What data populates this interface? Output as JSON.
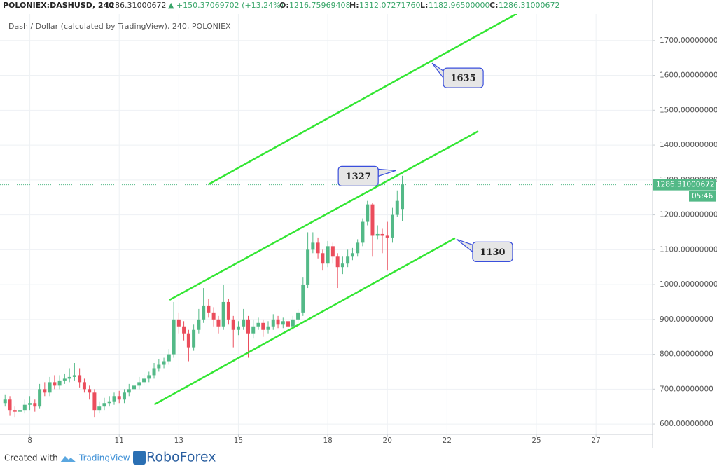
{
  "header": {
    "symbol": "POLONIEX:DASHUSD, 240",
    "last": "1286.31000672",
    "change": "▲ +150.37069702 (+13.24%)",
    "open_label": "O:",
    "open": "1216.75969408",
    "high_label": "H:",
    "high": "1312.07271760",
    "low_label": "L:",
    "low": "1182.96500000",
    "close_label": "C:",
    "close": "1286.31000672"
  },
  "footer": {
    "created": "Created with",
    "tradingview": "TradingView",
    "broker": "RoboForex"
  },
  "chart_data": {
    "type": "candlestick",
    "subtitle": "Dash / Dollar (calculated by TradingView), 240, POLONIEX",
    "x": [
      7.17,
      7.33,
      7.5,
      7.67,
      7.83,
      8,
      8.17,
      8.33,
      8.5,
      8.67,
      8.83,
      9,
      9.17,
      9.33,
      9.5,
      9.67,
      9.83,
      10,
      10.17,
      10.33,
      10.5,
      10.67,
      10.83,
      11,
      11.17,
      11.33,
      11.5,
      11.67,
      11.83,
      12,
      12.17,
      12.33,
      12.5,
      12.67,
      12.83,
      13,
      13.17,
      13.33,
      13.5,
      13.67,
      13.83,
      14,
      14.17,
      14.33,
      14.5,
      14.67,
      14.83,
      15,
      15.17,
      15.33,
      15.5,
      15.67,
      15.83,
      16,
      16.17,
      16.33,
      16.5,
      16.67,
      16.83,
      17,
      17.17,
      17.33,
      17.5,
      17.67,
      17.83,
      18,
      18.17,
      18.33,
      18.5,
      18.67,
      18.83,
      19,
      19.17,
      19.33,
      19.5,
      19.67,
      19.83,
      20,
      20.17,
      20.33,
      20.5
    ],
    "open": [
      660,
      670,
      640,
      635,
      640,
      655,
      660,
      650,
      700,
      690,
      720,
      710,
      725,
      730,
      735,
      740,
      720,
      700,
      690,
      640,
      650,
      660,
      665,
      680,
      670,
      690,
      700,
      710,
      720,
      730,
      740,
      760,
      770,
      780,
      800,
      900,
      880,
      860,
      820,
      870,
      900,
      940,
      920,
      900,
      880,
      950,
      900,
      870,
      880,
      900,
      860,
      880,
      890,
      870,
      880,
      900,
      885,
      895,
      880,
      900,
      920,
      1000,
      1100,
      1120,
      1090,
      1060,
      1110,
      1080,
      1050,
      1060,
      1080,
      1090,
      1120,
      1180,
      1230,
      1140,
      1145,
      1140,
      1135,
      1200,
      1216.76
    ],
    "high": [
      685,
      680,
      650,
      655,
      670,
      680,
      670,
      715,
      720,
      735,
      740,
      740,
      745,
      760,
      775,
      760,
      730,
      710,
      700,
      665,
      675,
      680,
      690,
      695,
      700,
      715,
      720,
      735,
      745,
      750,
      775,
      785,
      790,
      815,
      950,
      920,
      895,
      870,
      885,
      930,
      990,
      960,
      935,
      910,
      1000,
      960,
      910,
      895,
      930,
      910,
      900,
      905,
      900,
      895,
      915,
      910,
      905,
      900,
      910,
      930,
      1020,
      1150,
      1150,
      1135,
      1100,
      1125,
      1120,
      1090,
      1080,
      1100,
      1105,
      1130,
      1190,
      1240,
      1235,
      1170,
      1160,
      1180,
      1220,
      1270,
      1312.07
    ],
    "low": [
      650,
      625,
      620,
      625,
      630,
      640,
      635,
      645,
      680,
      680,
      700,
      700,
      715,
      720,
      725,
      705,
      690,
      670,
      620,
      630,
      640,
      650,
      655,
      660,
      660,
      680,
      690,
      700,
      710,
      720,
      730,
      750,
      760,
      770,
      790,
      860,
      840,
      780,
      810,
      860,
      890,
      905,
      880,
      860,
      870,
      885,
      820,
      855,
      870,
      790,
      845,
      870,
      850,
      860,
      870,
      875,
      875,
      865,
      870,
      890,
      910,
      990,
      1090,
      1075,
      1040,
      1050,
      1060,
      990,
      1030,
      1050,
      1070,
      1080,
      1110,
      1170,
      1080,
      1130,
      1090,
      1040,
      1120,
      1195,
      1182.97
    ],
    "close": [
      670,
      640,
      635,
      640,
      655,
      660,
      650,
      700,
      690,
      720,
      710,
      725,
      730,
      735,
      740,
      720,
      700,
      690,
      640,
      650,
      660,
      665,
      680,
      670,
      690,
      700,
      710,
      720,
      730,
      740,
      760,
      770,
      780,
      800,
      900,
      880,
      860,
      820,
      870,
      900,
      940,
      920,
      900,
      880,
      950,
      900,
      870,
      880,
      900,
      860,
      880,
      890,
      870,
      880,
      900,
      885,
      895,
      880,
      900,
      920,
      1000,
      1100,
      1120,
      1090,
      1060,
      1110,
      1080,
      1050,
      1060,
      1080,
      1090,
      1120,
      1180,
      1230,
      1140,
      1145,
      1140,
      1135,
      1200,
      1240,
      1286.31
    ],
    "up_color": "#53b987",
    "down_color": "#eb4d5c",
    "xlim": [
      7.0,
      28.9
    ],
    "xticks": [
      8,
      11,
      13,
      15,
      18,
      20,
      22,
      25,
      27
    ],
    "ylim": [
      570,
      1776
    ],
    "yticks": [
      {
        "value": 600,
        "label": "600.00000000"
      },
      {
        "value": 700,
        "label": "700.00000000"
      },
      {
        "value": 800,
        "label": "800.00000000"
      },
      {
        "value": 900,
        "label": "900.00000000"
      },
      {
        "value": 1000,
        "label": "1000.00000000"
      },
      {
        "value": 1100,
        "label": "1100.00000000"
      },
      {
        "value": 1200,
        "label": "1200.00000000"
      },
      {
        "value": 1300,
        "label": "1300.00000000"
      },
      {
        "value": 1400,
        "label": "1400.00000000"
      },
      {
        "value": 1500,
        "label": "1500.00000000"
      },
      {
        "value": 1600,
        "label": "1600.00000000"
      },
      {
        "value": 1700,
        "label": "1700.00000000"
      }
    ],
    "grid": true,
    "last_price": {
      "value": 1286.31000672,
      "label": "1286.31000672",
      "countdown": "05:46",
      "color": "#53b987"
    },
    "trend_color": "#33e633",
    "trend_lines": [
      {
        "x": [
          14.01,
          24.34
        ],
        "y": [
          1288,
          1777
        ]
      },
      {
        "x": [
          12.69,
          23.05
        ],
        "y": [
          956,
          1440
        ]
      },
      {
        "x": [
          12.18,
          22.27
        ],
        "y": [
          656,
          1133
        ]
      }
    ],
    "annotations": [
      {
        "x": 21.5,
        "y": 1635
      },
      {
        "x": 20.28,
        "y": 1327
      },
      {
        "x": 22.32,
        "y": 1130
      }
    ]
  }
}
